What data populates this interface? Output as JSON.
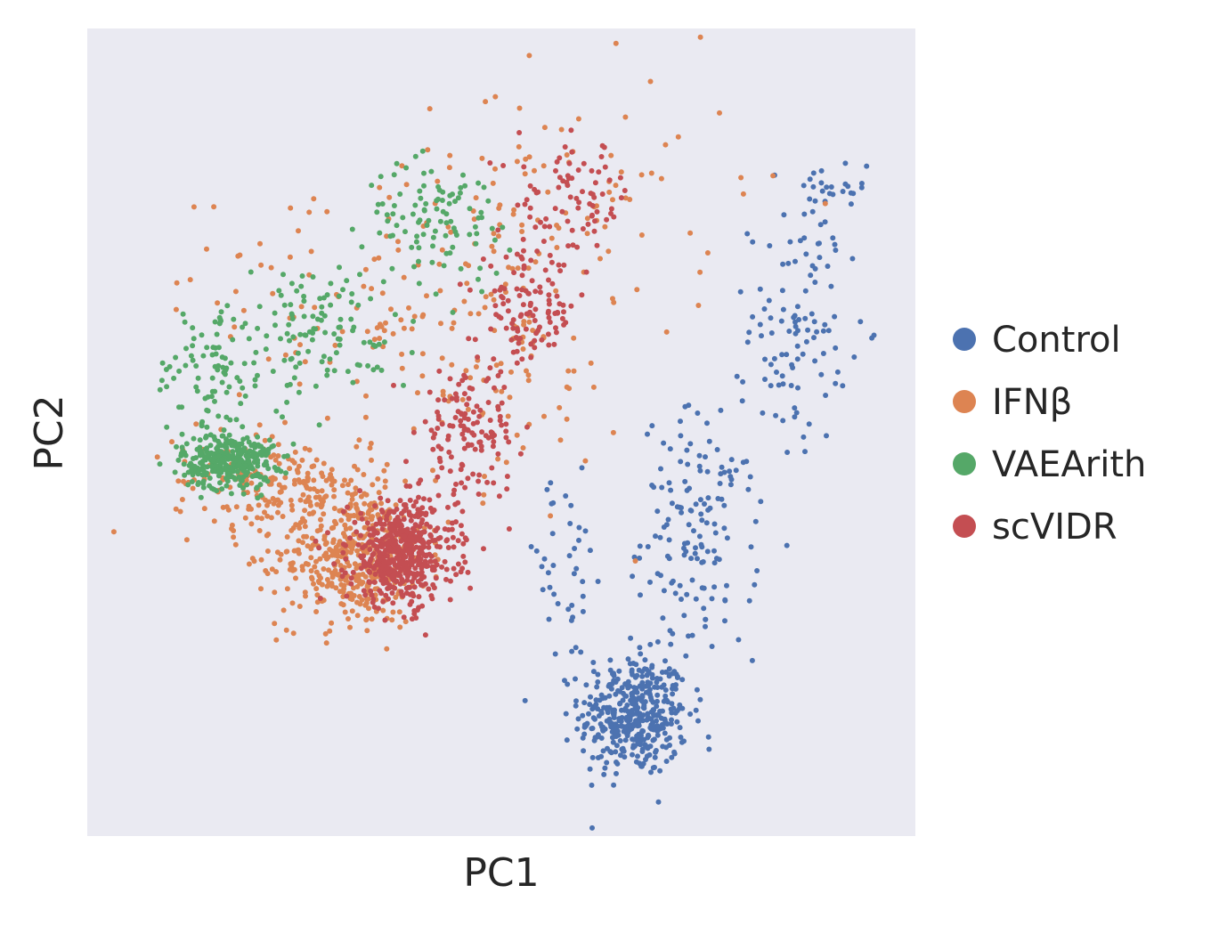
{
  "chart_data": {
    "type": "scatter",
    "title": "",
    "xlabel": "PC1",
    "ylabel": "PC2",
    "xlim": [
      -1,
      1
    ],
    "ylim": [
      -1,
      1
    ],
    "grid": false,
    "legend_position": "right",
    "background_color": "#eaeaf2",
    "series": [
      {
        "name": "Control",
        "color": "#4c72b0",
        "clusters": [
          {
            "n": 420,
            "cx": 0.32,
            "cy": -0.7,
            "sx": 0.065,
            "sy": 0.075
          },
          {
            "n": 150,
            "cx": 0.48,
            "cy": -0.25,
            "sx": 0.07,
            "sy": 0.15
          },
          {
            "n": 100,
            "cx": 0.72,
            "cy": 0.26,
            "sx": 0.06,
            "sy": 0.14
          },
          {
            "n": 30,
            "cx": 0.78,
            "cy": 0.58,
            "sx": 0.05,
            "sy": 0.05
          },
          {
            "n": 40,
            "cx": 0.15,
            "cy": -0.35,
            "sx": 0.06,
            "sy": 0.12
          }
        ]
      },
      {
        "name": "IFNβ",
        "color": "#dd8452",
        "clusters": [
          {
            "n": 450,
            "cx": -0.36,
            "cy": -0.3,
            "sx": 0.09,
            "sy": 0.09
          },
          {
            "n": 180,
            "cx": -0.55,
            "cy": -0.12,
            "sx": 0.12,
            "sy": 0.06
          },
          {
            "n": 130,
            "cx": -0.05,
            "cy": 0.2,
            "sx": 0.18,
            "sy": 0.18
          },
          {
            "n": 90,
            "cx": 0.15,
            "cy": 0.58,
            "sx": 0.22,
            "sy": 0.16
          },
          {
            "n": 60,
            "cx": -0.45,
            "cy": 0.35,
            "sx": 0.18,
            "sy": 0.15
          }
        ]
      },
      {
        "name": "VAEArith",
        "color": "#55a868",
        "clusters": [
          {
            "n": 330,
            "cx": -0.66,
            "cy": -0.07,
            "sx": 0.055,
            "sy": 0.035
          },
          {
            "n": 120,
            "cx": -0.45,
            "cy": 0.25,
            "sx": 0.12,
            "sy": 0.08
          },
          {
            "n": 100,
            "cx": -0.15,
            "cy": 0.53,
            "sx": 0.09,
            "sy": 0.07
          },
          {
            "n": 80,
            "cx": -0.7,
            "cy": 0.15,
            "sx": 0.07,
            "sy": 0.09
          }
        ]
      },
      {
        "name": "scVIDR",
        "color": "#c44e52",
        "clusters": [
          {
            "n": 520,
            "cx": -0.24,
            "cy": -0.3,
            "sx": 0.065,
            "sy": 0.065
          },
          {
            "n": 130,
            "cx": -0.08,
            "cy": 0.0,
            "sx": 0.06,
            "sy": 0.07
          },
          {
            "n": 110,
            "cx": 0.06,
            "cy": 0.3,
            "sx": 0.06,
            "sy": 0.07
          },
          {
            "n": 80,
            "cx": 0.18,
            "cy": 0.58,
            "sx": 0.07,
            "sy": 0.07
          }
        ]
      }
    ]
  }
}
